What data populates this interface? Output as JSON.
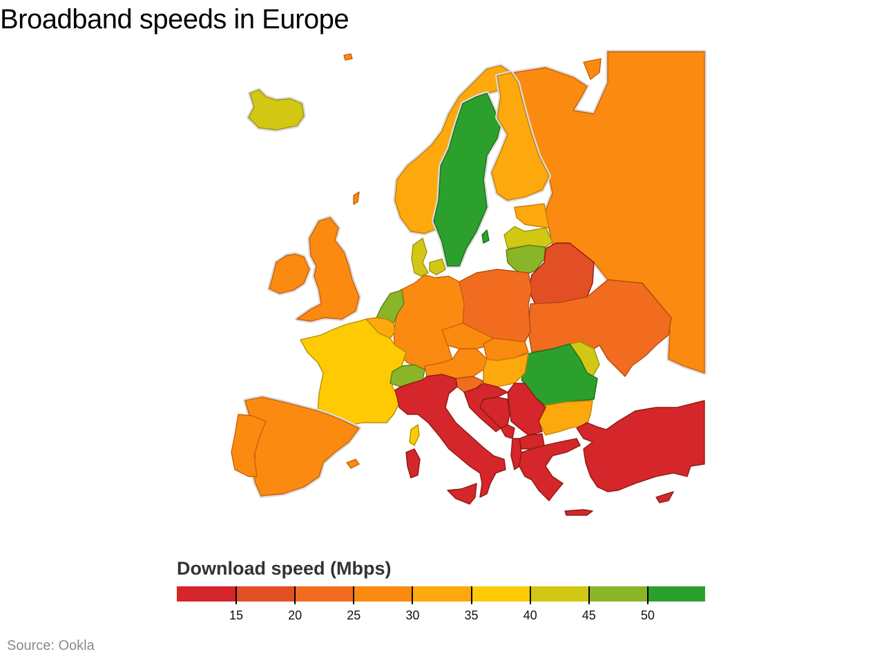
{
  "title": "Broadband speeds in Europe",
  "source": "Source: Ookla",
  "legend": {
    "title": "Download speed (Mbps)",
    "bins": [
      {
        "color": "#d4262b"
      },
      {
        "color": "#e34f25"
      },
      {
        "color": "#f26c1f"
      },
      {
        "color": "#fb8a10"
      },
      {
        "color": "#fda80c"
      },
      {
        "color": "#fdca03"
      },
      {
        "color": "#d2c814"
      },
      {
        "color": "#8bb528"
      },
      {
        "color": "#2ca02c"
      }
    ],
    "ticks": [
      "15",
      "20",
      "25",
      "30",
      "35",
      "40",
      "45",
      "50"
    ]
  },
  "chart_data": {
    "type": "choropleth",
    "title": "Broadband speeds in Europe",
    "legend_title": "Download speed (Mbps)",
    "scale_breaks": [
      15,
      20,
      25,
      30,
      35,
      40,
      45,
      50
    ],
    "bin_colors": [
      "#d4262b",
      "#e34f25",
      "#f26c1f",
      "#fb8a10",
      "#fda80c",
      "#fdca03",
      "#d2c814",
      "#8bb528",
      "#2ca02c"
    ],
    "countries": [
      {
        "name": "Iceland",
        "bin": "40-45"
      },
      {
        "name": "Norway",
        "bin": "30-35"
      },
      {
        "name": "Sweden",
        "bin": ">50"
      },
      {
        "name": "Finland",
        "bin": "30-35"
      },
      {
        "name": "Russia",
        "bin": "25-30"
      },
      {
        "name": "Estonia",
        "bin": "30-35"
      },
      {
        "name": "Latvia",
        "bin": "40-45"
      },
      {
        "name": "Lithuania",
        "bin": "45-50"
      },
      {
        "name": "Belarus",
        "bin": "15-20"
      },
      {
        "name": "Ukraine",
        "bin": "20-25"
      },
      {
        "name": "Moldova",
        "bin": "40-45"
      },
      {
        "name": "Romania",
        "bin": ">50"
      },
      {
        "name": "Bulgaria",
        "bin": "30-35"
      },
      {
        "name": "Poland",
        "bin": "20-25"
      },
      {
        "name": "Germany",
        "bin": "25-30"
      },
      {
        "name": "Denmark",
        "bin": "40-45"
      },
      {
        "name": "Netherlands",
        "bin": "45-50"
      },
      {
        "name": "Belgium",
        "bin": "30-35"
      },
      {
        "name": "Luxembourg",
        "bin": "35-40"
      },
      {
        "name": "France",
        "bin": "35-40"
      },
      {
        "name": "Switzerland",
        "bin": "45-50"
      },
      {
        "name": "Austria",
        "bin": "25-30"
      },
      {
        "name": "Czech Republic",
        "bin": "25-30"
      },
      {
        "name": "Slovakia",
        "bin": "25-30"
      },
      {
        "name": "Hungary",
        "bin": "30-35"
      },
      {
        "name": "Slovenia",
        "bin": "20-25"
      },
      {
        "name": "Croatia",
        "bin": "<15"
      },
      {
        "name": "Bosnia and Herzegovina",
        "bin": "<15"
      },
      {
        "name": "Serbia",
        "bin": "<15"
      },
      {
        "name": "Montenegro",
        "bin": "<15"
      },
      {
        "name": "Albania",
        "bin": "<15"
      },
      {
        "name": "North Macedonia",
        "bin": "<15"
      },
      {
        "name": "Greece",
        "bin": "<15"
      },
      {
        "name": "Turkey",
        "bin": "<15"
      },
      {
        "name": "Cyprus",
        "bin": "<15"
      },
      {
        "name": "Italy",
        "bin": "<15"
      },
      {
        "name": "Corsica (France)",
        "bin": "35-40"
      },
      {
        "name": "United Kingdom",
        "bin": "25-30"
      },
      {
        "name": "Ireland",
        "bin": "25-30"
      },
      {
        "name": "Spain",
        "bin": "25-30"
      },
      {
        "name": "Portugal",
        "bin": "25-30"
      }
    ]
  }
}
